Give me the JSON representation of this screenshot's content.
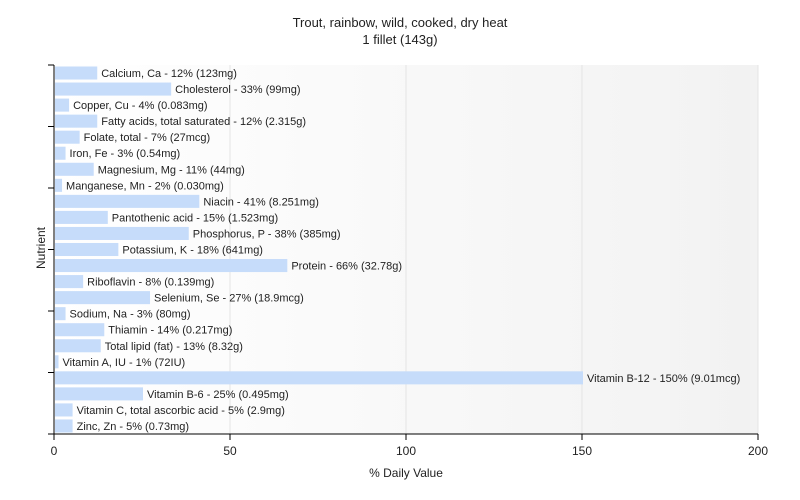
{
  "chart_data": {
    "type": "bar",
    "orientation": "horizontal",
    "title": "Trout, rainbow, wild, cooked, dry heat",
    "subtitle": "1 fillet (143g)",
    "xlabel": "% Daily Value",
    "ylabel": "Nutrient",
    "xlim": [
      0,
      200
    ],
    "xticks": [
      0,
      50,
      100,
      150,
      200
    ],
    "grid": true,
    "bar_color": "#c6dcfa",
    "categories": [
      "Calcium, Ca",
      "Cholesterol",
      "Copper, Cu",
      "Fatty acids, total saturated",
      "Folate, total",
      "Iron, Fe",
      "Magnesium, Mg",
      "Manganese, Mn",
      "Niacin",
      "Pantothenic acid",
      "Phosphorus, P",
      "Potassium, K",
      "Protein",
      "Riboflavin",
      "Selenium, Se",
      "Sodium, Na",
      "Thiamin",
      "Total lipid (fat)",
      "Vitamin A, IU",
      "Vitamin B-12",
      "Vitamin B-6",
      "Vitamin C, total ascorbic acid",
      "Zinc, Zn"
    ],
    "values": [
      12,
      33,
      4,
      12,
      7,
      3,
      11,
      2,
      41,
      15,
      38,
      18,
      66,
      8,
      27,
      3,
      14,
      13,
      1,
      150,
      25,
      5,
      5
    ],
    "labels": [
      "Calcium, Ca - 12% (123mg)",
      "Cholesterol - 33% (99mg)",
      "Copper, Cu - 4% (0.083mg)",
      "Fatty acids, total saturated - 12% (2.315g)",
      "Folate, total - 7% (27mcg)",
      "Iron, Fe - 3% (0.54mg)",
      "Magnesium, Mg - 11% (44mg)",
      "Manganese, Mn - 2% (0.030mg)",
      "Niacin - 41% (8.251mg)",
      "Pantothenic acid - 15% (1.523mg)",
      "Phosphorus, P - 38% (385mg)",
      "Potassium, K - 18% (641mg)",
      "Protein - 66% (32.78g)",
      "Riboflavin - 8% (0.139mg)",
      "Selenium, Se - 27% (18.9mcg)",
      "Sodium, Na - 3% (80mg)",
      "Thiamin - 14% (0.217mg)",
      "Total lipid (fat) - 13% (8.32g)",
      "Vitamin A, IU - 1% (72IU)",
      "Vitamin B-12 - 150% (9.01mcg)",
      "Vitamin B-6 - 25% (0.495mg)",
      "Vitamin C, total ascorbic acid - 5% (2.9mg)",
      "Zinc, Zn - 5% (0.73mg)"
    ]
  }
}
